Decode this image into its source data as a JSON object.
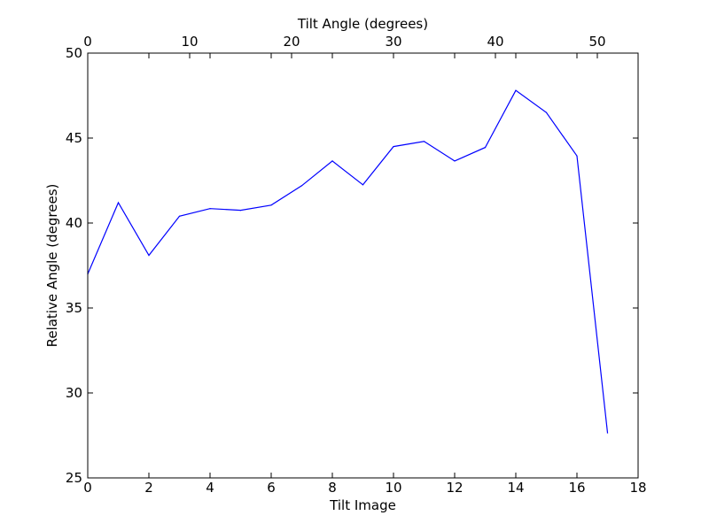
{
  "chart_data": {
    "type": "line",
    "title": "",
    "xlabel": "Tilt Image",
    "ylabel": "Relative Angle (degrees)",
    "x2label": "Tilt Angle (degrees)",
    "xlim": [
      0,
      18
    ],
    "ylim": [
      25,
      50
    ],
    "x2lim": [
      0,
      54
    ],
    "xticks": [
      "0",
      "2",
      "4",
      "6",
      "8",
      "10",
      "12",
      "14",
      "16",
      "18"
    ],
    "yticks": [
      "25",
      "30",
      "35",
      "40",
      "45",
      "50"
    ],
    "x2ticks": [
      "0",
      "10",
      "20",
      "30",
      "40",
      "50"
    ],
    "grid": false,
    "line_color": "#0000ff",
    "series": [
      {
        "x": [
          0,
          1,
          2,
          3,
          4,
          5,
          6,
          7,
          8,
          9,
          10,
          11,
          12,
          13,
          14,
          15,
          16,
          17
        ],
        "values": [
          37.0,
          41.2,
          38.1,
          40.4,
          40.85,
          40.75,
          41.05,
          42.2,
          43.65,
          42.25,
          44.5,
          44.8,
          43.65,
          44.45,
          47.8,
          46.5,
          43.95,
          27.65
        ]
      }
    ]
  }
}
